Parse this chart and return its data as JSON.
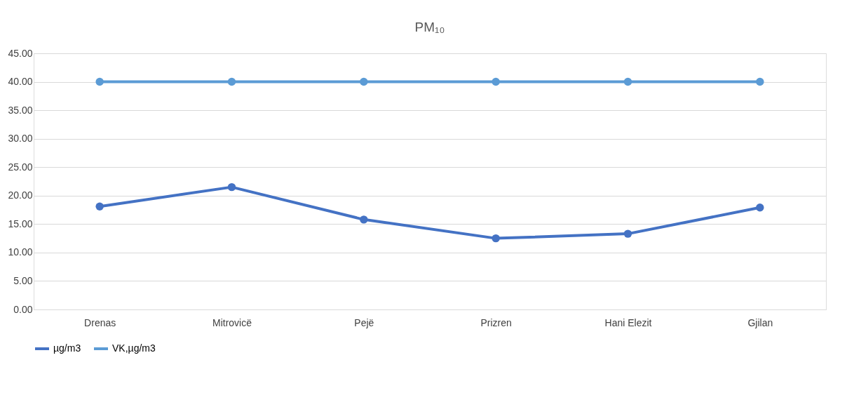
{
  "chart_data": {
    "type": "line",
    "title": "PM₁₀",
    "categories": [
      "Drenas",
      "Mitrovicë",
      "Pejë",
      "Prizren",
      "Hani Elezit",
      "Gjilan"
    ],
    "series": [
      {
        "name": "µg/m3",
        "color": "#4472c4",
        "values": [
          18.1,
          21.5,
          15.8,
          12.5,
          13.3,
          17.9
        ]
      },
      {
        "name": "VK,µg/m3",
        "color": "#5b9bd5",
        "values": [
          40,
          40,
          40,
          40,
          40,
          40
        ]
      }
    ],
    "ylim": [
      0,
      45
    ],
    "yticks": [
      {
        "value": 0,
        "label": "0.00"
      },
      {
        "value": 5,
        "label": "5.00"
      },
      {
        "value": 10,
        "label": "10.00"
      },
      {
        "value": 15,
        "label": "15.00"
      },
      {
        "value": 20,
        "label": "20.00"
      },
      {
        "value": 25,
        "label": "25.00"
      },
      {
        "value": 30,
        "label": "30.00"
      },
      {
        "value": 35,
        "label": "35.00"
      },
      {
        "value": 40,
        "label": "40.00"
      },
      {
        "value": 45,
        "label": "45.00"
      }
    ],
    "grid": "y",
    "legend": "bottom",
    "marker": "circle",
    "line_style": "solid"
  }
}
